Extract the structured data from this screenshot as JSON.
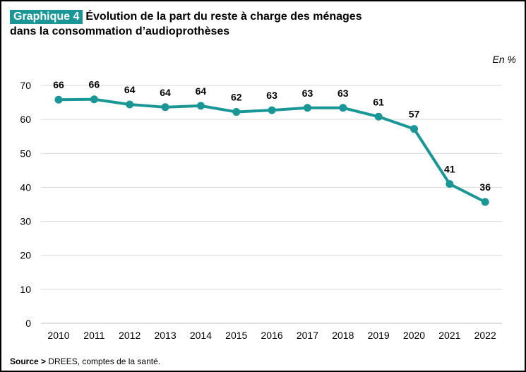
{
  "header": {
    "badge": "Graphique 4",
    "title_line1": "Évolution de la part du reste à charge des ménages",
    "title_line2": "dans la consommation d’audioprothèses",
    "unit": "En %"
  },
  "footer": {
    "source_label": "Source >",
    "source_text": " DREES, comptes de la santé."
  },
  "colors": {
    "accent": "#1a9696",
    "grid": "#d9d9d9"
  },
  "chart_data": {
    "type": "line",
    "title": "Évolution de la part du reste à charge des ménages dans la consommation d’audioprothèses",
    "ylabel": "En %",
    "xlabel": "",
    "categories": [
      "2010",
      "2011",
      "2012",
      "2013",
      "2014",
      "2015",
      "2016",
      "2017",
      "2018",
      "2019",
      "2020",
      "2021",
      "2022"
    ],
    "values": [
      65.8,
      65.9,
      64.4,
      63.6,
      64.0,
      62.2,
      62.7,
      63.4,
      63.4,
      60.8,
      57.2,
      41.0,
      35.7
    ],
    "labels": [
      "66",
      "66",
      "64",
      "64",
      "64",
      "62",
      "63",
      "63",
      "63",
      "61",
      "57",
      "41",
      "36"
    ],
    "ylim": [
      0,
      70
    ],
    "yticks": [
      0,
      10,
      20,
      30,
      40,
      50,
      60,
      70
    ],
    "grid": true,
    "legend": "none"
  }
}
